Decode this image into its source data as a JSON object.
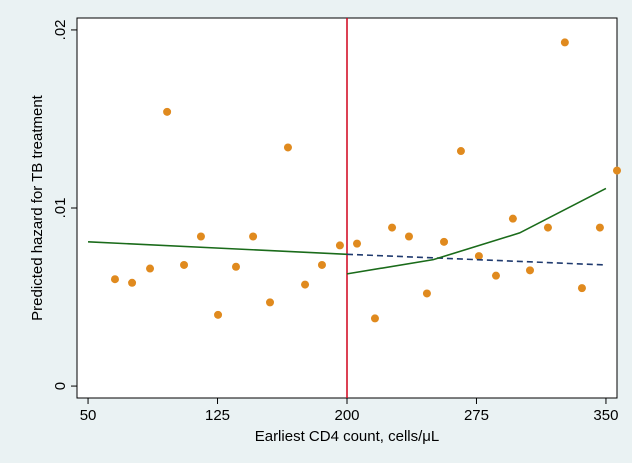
{
  "chart_data": {
    "type": "scatter",
    "xlabel": "Earliest CD4 count, cells/μL",
    "ylabel": "Predicted hazard for TB treatment",
    "xlim": [
      43.6,
      356.4
    ],
    "xticks": [
      50,
      125,
      200,
      275,
      350
    ],
    "ylim": [
      -0.00067,
      0.02067
    ],
    "yticks": [
      {
        "value": 0,
        "label": "0"
      },
      {
        "value": 0.01,
        "label": ".01"
      },
      {
        "value": 0.02,
        "label": ".02"
      }
    ],
    "vline": 200,
    "vline_color": "#d0021b",
    "series": [
      {
        "mode": "markers",
        "color": "#e08a1e",
        "x": [
          65.6,
          75.5,
          85.9,
          95.8,
          105.6,
          115.4,
          125.3,
          135.7,
          145.6,
          155.4,
          165.8,
          175.7,
          185.5,
          195.9,
          205.8,
          216.2,
          226.1,
          235.9,
          246.3,
          256.2,
          266.0,
          276.4,
          286.3,
          296.1,
          306.0,
          316.4,
          326.2,
          336.1,
          346.5,
          356.4
        ],
        "values": [
          0.006,
          0.0058,
          0.0066,
          0.0154,
          0.0068,
          0.0084,
          0.004,
          0.0067,
          0.0084,
          0.0047,
          0.0134,
          0.0057,
          0.0068,
          0.0079,
          0.008,
          0.0038,
          0.0089,
          0.0084,
          0.0052,
          0.0081,
          0.0132,
          0.0073,
          0.0062,
          0.0094,
          0.0065,
          0.0089,
          0.0193,
          0.0055,
          0.0089,
          0.0121
        ]
      },
      {
        "mode": "line",
        "color": "#1a6b1a",
        "dash": false,
        "x": [
          50,
          200
        ],
        "values": [
          0.0081,
          0.0074
        ]
      },
      {
        "mode": "line",
        "color": "#1f3a6e",
        "dash": true,
        "x": [
          200,
          350
        ],
        "values": [
          0.0074,
          0.0068
        ]
      },
      {
        "mode": "line",
        "color": "#1a6b1a",
        "dash": false,
        "x": [
          200,
          250,
          300,
          350
        ],
        "values": [
          0.0063,
          0.0071,
          0.0086,
          0.0111
        ]
      }
    ]
  }
}
